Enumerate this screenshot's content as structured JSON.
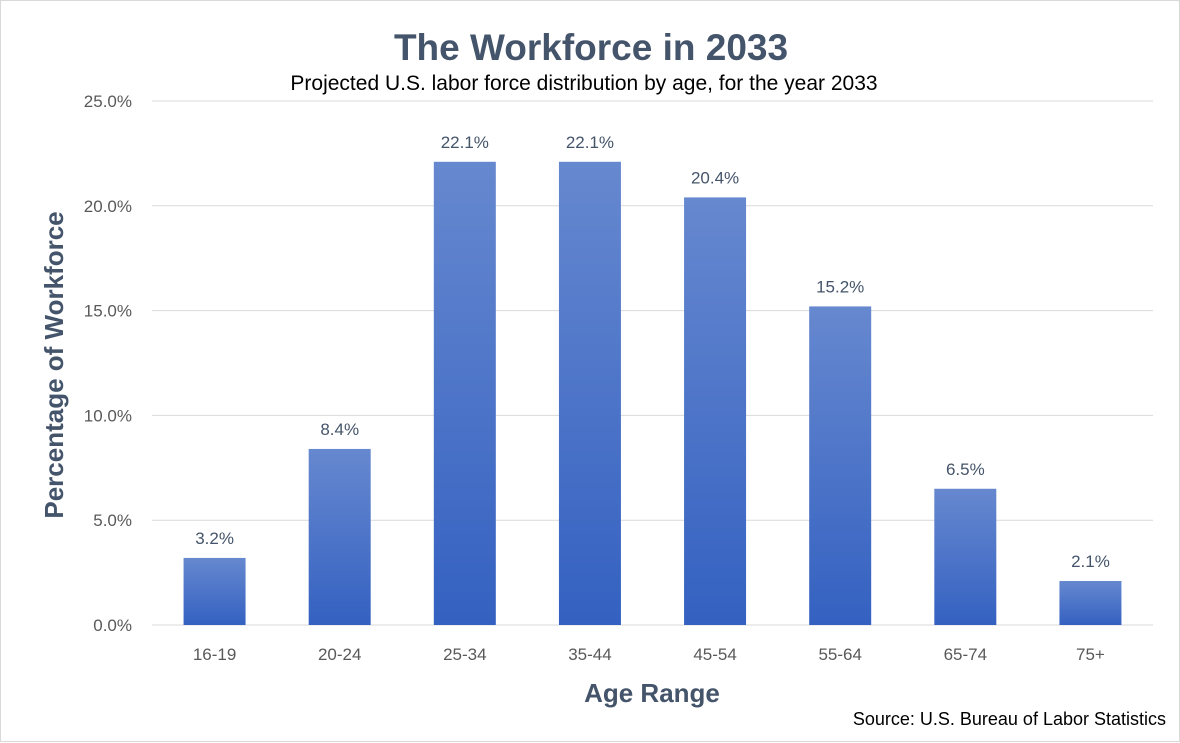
{
  "chart_data": {
    "type": "bar",
    "title": "The Workforce in 2033",
    "subtitle": "Projected U.S. labor force distribution by age, for the year 2033",
    "xlabel": "Age Range",
    "ylabel": "Percentage of Workforce",
    "source": "Source: U.S. Bureau of Labor Statistics",
    "categories": [
      "16-19",
      "20-24",
      "25-34",
      "35-44",
      "45-54",
      "55-64",
      "65-74",
      "75+"
    ],
    "values": [
      3.2,
      8.4,
      22.1,
      22.1,
      20.4,
      15.2,
      6.5,
      2.1
    ],
    "data_labels": [
      "3.2%",
      "8.4%",
      "22.1%",
      "22.1%",
      "20.4%",
      "15.2%",
      "6.5%",
      "2.1%"
    ],
    "ylim": [
      0,
      25
    ],
    "y_ticks": [
      0,
      5,
      10,
      15,
      20,
      25
    ],
    "y_tick_labels": [
      "0.0%",
      "5.0%",
      "10.0%",
      "15.0%",
      "20.0%",
      "25.0%"
    ],
    "grid": "horizontal",
    "legend": "none",
    "colors": {
      "bar_top": "#6688cf",
      "bar_bottom": "#3461c1",
      "text": "#44546a",
      "grid": "#d9d9d9"
    }
  }
}
